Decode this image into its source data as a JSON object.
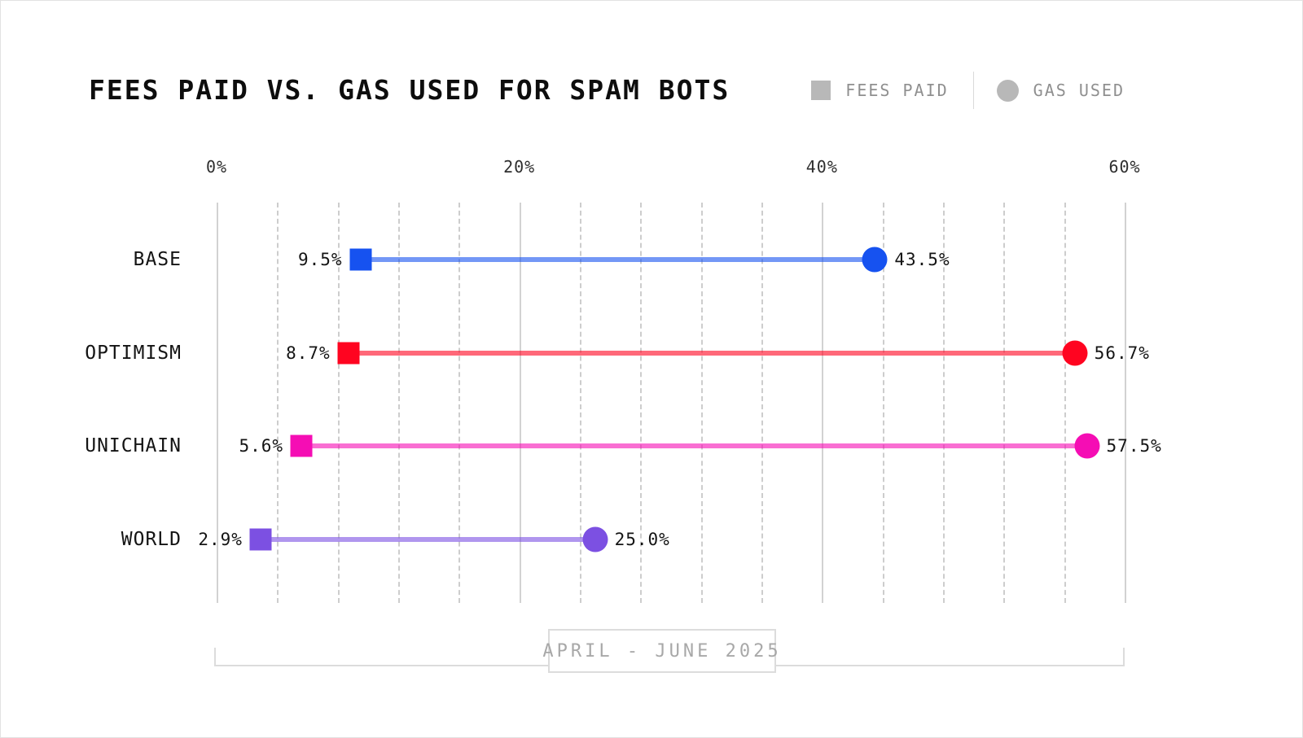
{
  "header": {
    "title": "FEES PAID VS. GAS USED FOR SPAM BOTS"
  },
  "legend": {
    "items": [
      {
        "label": "FEES PAID",
        "marker": "square"
      },
      {
        "label": "GAS USED",
        "marker": "circle"
      }
    ],
    "swatch_color": "#b8b8b8"
  },
  "footer": {
    "period_label": "APRIL - JUNE 2025"
  },
  "chart_data": {
    "type": "dumbbell",
    "title": "FEES PAID VS. GAS USED FOR SPAM BOTS",
    "categories": [
      "BASE",
      "OPTIMISM",
      "UNICHAIN",
      "WORLD"
    ],
    "series": [
      {
        "name": "FEES PAID",
        "marker": "square",
        "values": [
          9.5,
          8.7,
          5.6,
          2.9
        ]
      },
      {
        "name": "GAS USED",
        "marker": "circle",
        "values": [
          43.5,
          56.7,
          57.5,
          25.0
        ]
      }
    ],
    "value_labels": {
      "fees_paid": [
        "9.5%",
        "8.7%",
        "5.6%",
        "2.9%"
      ],
      "gas_used": [
        "43.5%",
        "56.7%",
        "57.5%",
        "25.0%"
      ]
    },
    "row_colors": [
      "#1652f0",
      "#ff0420",
      "#f50db4",
      "#7c50e2"
    ],
    "xlim": [
      0,
      60
    ],
    "tick_values": [
      0,
      20,
      40,
      60
    ],
    "tick_labels": [
      "0%",
      "20%",
      "40%",
      "60%"
    ],
    "minor_grid_step": 4,
    "grid": {
      "major": "solid",
      "minor": "dashed"
    },
    "legend_position": "top-right",
    "annotation": "APRIL - JUNE 2025"
  }
}
